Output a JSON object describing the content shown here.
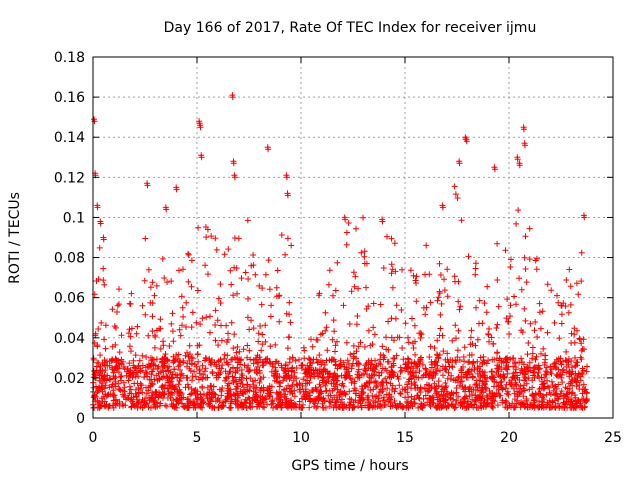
{
  "chart_data": {
    "type": "scatter",
    "title": "Day 166 of 2017, Rate Of TEC Index for receiver ijmu",
    "xlabel": "GPS time / hours",
    "ylabel": "ROTI / TECUs",
    "xlim": [
      0,
      25
    ],
    "ylim": [
      0,
      0.18
    ],
    "x_ticks": [
      0,
      5,
      10,
      15,
      20,
      25
    ],
    "x_tick_labels": [
      "0",
      "5",
      "10",
      "15",
      "20",
      "25"
    ],
    "y_ticks": [
      0,
      0.02,
      0.04,
      0.06,
      0.08,
      0.1,
      0.12,
      0.14,
      0.16,
      0.18
    ],
    "y_tick_labels": [
      "0",
      "0.02",
      "0.04",
      "0.06",
      "0.08",
      "0.1",
      "0.12",
      "0.14",
      "0.16",
      "0.18"
    ],
    "grid": true,
    "marker": "plus",
    "color": "#ff0000",
    "series": [
      {
        "name": "ROTI",
        "x_range": [
          0,
          23.75
        ],
        "dense_band": [
          0.005,
          0.03
        ],
        "approx_points": 2800,
        "notable_points": [
          {
            "x": 0.05,
            "y": 0.149
          },
          {
            "x": 0.1,
            "y": 0.122
          },
          {
            "x": 0.2,
            "y": 0.106
          },
          {
            "x": 0.35,
            "y": 0.098
          },
          {
            "x": 0.5,
            "y": 0.09
          },
          {
            "x": 2.6,
            "y": 0.117
          },
          {
            "x": 3.5,
            "y": 0.105
          },
          {
            "x": 4.0,
            "y": 0.115
          },
          {
            "x": 5.1,
            "y": 0.148
          },
          {
            "x": 5.15,
            "y": 0.146
          },
          {
            "x": 5.2,
            "y": 0.131
          },
          {
            "x": 6.7,
            "y": 0.161
          },
          {
            "x": 6.75,
            "y": 0.128
          },
          {
            "x": 6.8,
            "y": 0.121
          },
          {
            "x": 8.4,
            "y": 0.135
          },
          {
            "x": 9.3,
            "y": 0.121
          },
          {
            "x": 9.35,
            "y": 0.112
          },
          {
            "x": 12.1,
            "y": 0.1
          },
          {
            "x": 13.9,
            "y": 0.099
          },
          {
            "x": 16.8,
            "y": 0.106
          },
          {
            "x": 17.6,
            "y": 0.128
          },
          {
            "x": 17.9,
            "y": 0.14
          },
          {
            "x": 17.95,
            "y": 0.139
          },
          {
            "x": 19.3,
            "y": 0.125
          },
          {
            "x": 20.4,
            "y": 0.13
          },
          {
            "x": 20.5,
            "y": 0.127
          },
          {
            "x": 20.7,
            "y": 0.145
          },
          {
            "x": 20.75,
            "y": 0.137
          },
          {
            "x": 23.6,
            "y": 0.101
          }
        ],
        "bursts": [
          {
            "x": 0.0,
            "peak": 0.09
          },
          {
            "x": 0.4,
            "peak": 0.1
          },
          {
            "x": 1.2,
            "peak": 0.065
          },
          {
            "x": 2.0,
            "peak": 0.065
          },
          {
            "x": 2.6,
            "peak": 0.095
          },
          {
            "x": 3.1,
            "peak": 0.07
          },
          {
            "x": 3.6,
            "peak": 0.09
          },
          {
            "x": 4.1,
            "peak": 0.09
          },
          {
            "x": 4.6,
            "peak": 0.085
          },
          {
            "x": 5.2,
            "peak": 0.1
          },
          {
            "x": 5.8,
            "peak": 0.095
          },
          {
            "x": 6.4,
            "peak": 0.085
          },
          {
            "x": 7.0,
            "peak": 0.09
          },
          {
            "x": 7.6,
            "peak": 0.1
          },
          {
            "x": 8.1,
            "peak": 0.08
          },
          {
            "x": 8.7,
            "peak": 0.085
          },
          {
            "x": 9.3,
            "peak": 0.1
          },
          {
            "x": 10.4,
            "peak": 0.05
          },
          {
            "x": 11.0,
            "peak": 0.065
          },
          {
            "x": 11.5,
            "peak": 0.08
          },
          {
            "x": 12.3,
            "peak": 0.1
          },
          {
            "x": 12.8,
            "peak": 0.1
          },
          {
            "x": 13.3,
            "peak": 0.08
          },
          {
            "x": 14.1,
            "peak": 0.095
          },
          {
            "x": 14.6,
            "peak": 0.09
          },
          {
            "x": 15.3,
            "peak": 0.075
          },
          {
            "x": 15.8,
            "peak": 0.09
          },
          {
            "x": 16.4,
            "peak": 0.075
          },
          {
            "x": 16.9,
            "peak": 0.08
          },
          {
            "x": 17.6,
            "peak": 0.12
          },
          {
            "x": 18.3,
            "peak": 0.095
          },
          {
            "x": 18.8,
            "peak": 0.07
          },
          {
            "x": 19.4,
            "peak": 0.1
          },
          {
            "x": 20.0,
            "peak": 0.09
          },
          {
            "x": 20.6,
            "peak": 0.11
          },
          {
            "x": 21.1,
            "peak": 0.095
          },
          {
            "x": 21.6,
            "peak": 0.08
          },
          {
            "x": 22.3,
            "peak": 0.07
          },
          {
            "x": 22.8,
            "peak": 0.085
          },
          {
            "x": 23.4,
            "peak": 0.085
          }
        ]
      }
    ]
  }
}
